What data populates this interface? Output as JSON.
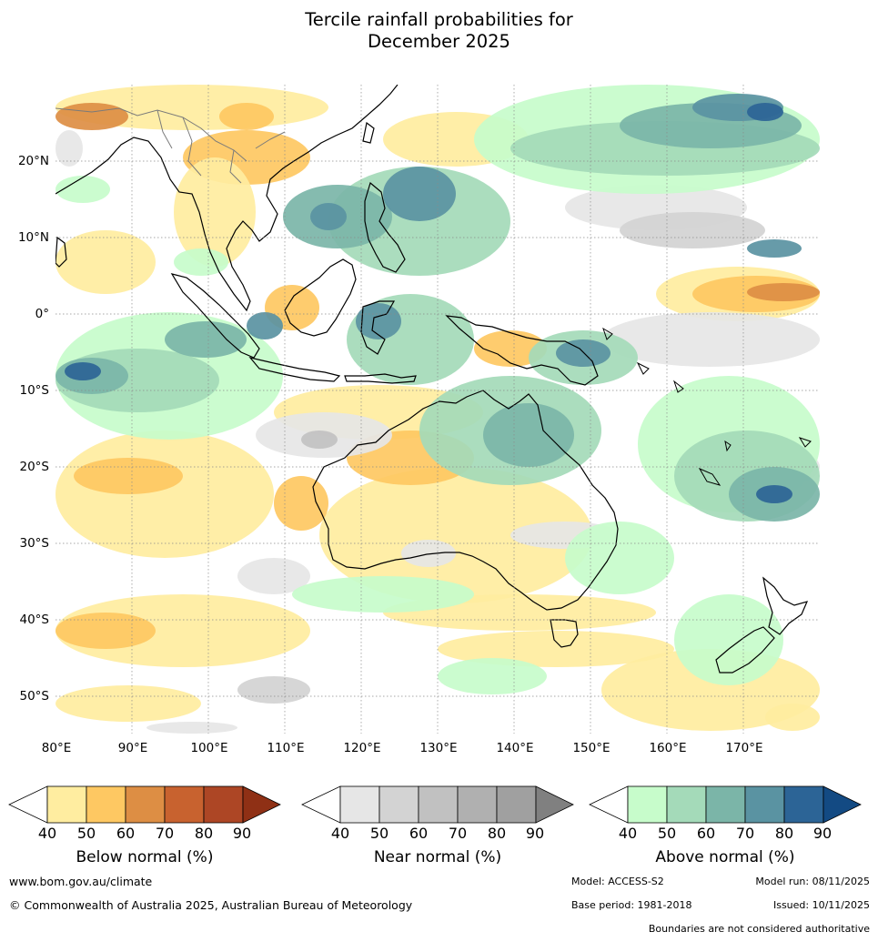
{
  "title": {
    "line1": "Tercile rainfall probabilities for",
    "line2": "December 2025"
  },
  "map": {
    "region": "Indian Ocean – Maritime Continent – Australia – Western Pacific",
    "lat_labels": [
      "20°N",
      "10°N",
      "0°",
      "10°S",
      "20°S",
      "30°S",
      "40°S",
      "50°S"
    ],
    "lon_labels": [
      "80°E",
      "90°E",
      "100°E",
      "110°E",
      "120°E",
      "130°E",
      "140°E",
      "150°E",
      "160°E",
      "170°E"
    ],
    "lon_range": [
      80,
      180
    ],
    "lat_range": [
      -55,
      30
    ],
    "gridlines": true
  },
  "legend": {
    "below": {
      "title": "Below normal (%)",
      "ticks": [
        "40",
        "50",
        "60",
        "70",
        "80",
        "90"
      ],
      "colors": [
        "#ffffff",
        "#ffeda0",
        "#fec862",
        "#dd8e44",
        "#c8622f",
        "#ad4625",
        "#8f3015"
      ]
    },
    "near": {
      "title": "Near normal (%)",
      "ticks": [
        "40",
        "50",
        "60",
        "70",
        "80",
        "90"
      ],
      "colors": [
        "#ffffff",
        "#e6e6e6",
        "#d3d3d3",
        "#c1c1c1",
        "#b0b0b0",
        "#a0a0a0",
        "#808080"
      ]
    },
    "above": {
      "title": "Above normal (%)",
      "ticks": [
        "40",
        "50",
        "60",
        "70",
        "80",
        "90"
      ],
      "colors": [
        "#ffffff",
        "#c7fccb",
        "#a4dab9",
        "#7bb5a8",
        "#5a93a2",
        "#2c6496",
        "#134a83"
      ]
    }
  },
  "footer": {
    "website": "www.bom.gov.au/climate",
    "copyright": "© Commonwealth of Australia 2025, Australian Bureau of Meteorology",
    "model": "Model: ACCESS-S2",
    "model_run": "Model run: 08/11/2025",
    "base_period": "Base period: 1981-2018",
    "issued": "Issued: 10/11/2025",
    "disclaimer": "Boundaries are not considered authoritative"
  }
}
